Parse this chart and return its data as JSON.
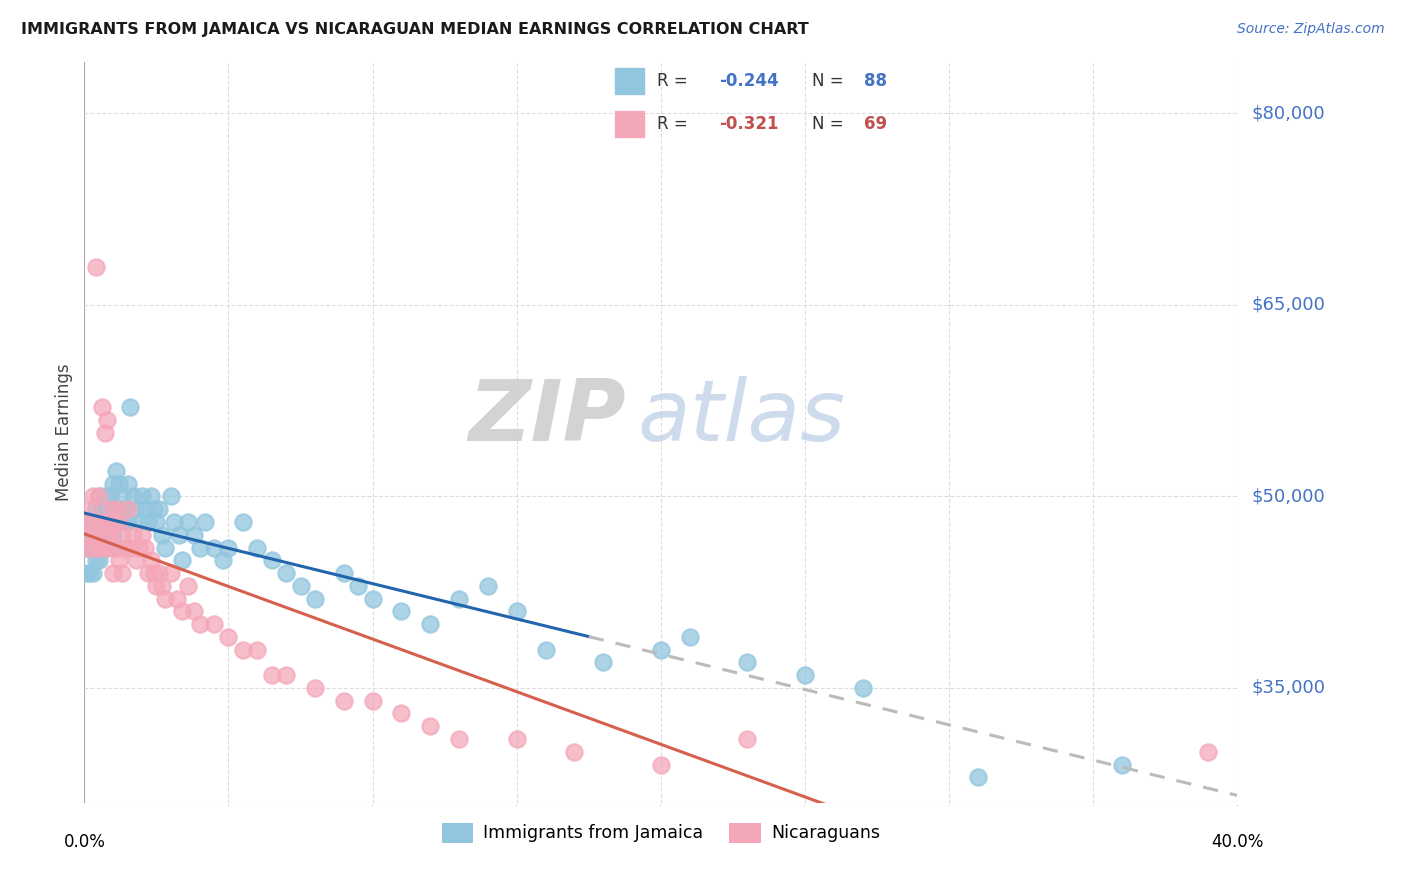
{
  "title": "IMMIGRANTS FROM JAMAICA VS NICARAGUAN MEDIAN EARNINGS CORRELATION CHART",
  "source": "Source: ZipAtlas.com",
  "ylabel": "Median Earnings",
  "xlim": [
    0.0,
    0.4
  ],
  "ylim": [
    26000,
    84000
  ],
  "right_yticks": [
    35000,
    50000,
    65000,
    80000
  ],
  "jamaica_color": "#92c5de",
  "nicaragua_color": "#f4a7b9",
  "trendline_jamaica_color": "#2166ac",
  "trendline_nicaragua_color": "#d6604d",
  "trendline_extended_color": "#bbbbbb",
  "watermark_zip": "ZIP",
  "watermark_atlas": "atlas",
  "jamaica_x": [
    0.001,
    0.001,
    0.002,
    0.002,
    0.002,
    0.003,
    0.003,
    0.003,
    0.003,
    0.004,
    0.004,
    0.004,
    0.004,
    0.005,
    0.005,
    0.005,
    0.005,
    0.006,
    0.006,
    0.006,
    0.006,
    0.007,
    0.007,
    0.007,
    0.008,
    0.008,
    0.008,
    0.009,
    0.009,
    0.01,
    0.01,
    0.01,
    0.011,
    0.011,
    0.012,
    0.012,
    0.013,
    0.013,
    0.014,
    0.015,
    0.015,
    0.016,
    0.017,
    0.018,
    0.019,
    0.02,
    0.021,
    0.022,
    0.023,
    0.024,
    0.025,
    0.026,
    0.027,
    0.028,
    0.03,
    0.031,
    0.033,
    0.034,
    0.036,
    0.038,
    0.04,
    0.042,
    0.045,
    0.048,
    0.05,
    0.055,
    0.06,
    0.065,
    0.07,
    0.075,
    0.08,
    0.09,
    0.095,
    0.1,
    0.11,
    0.12,
    0.13,
    0.14,
    0.15,
    0.16,
    0.18,
    0.2,
    0.21,
    0.23,
    0.25,
    0.27,
    0.31,
    0.36
  ],
  "jamaica_y": [
    46000,
    44000,
    47000,
    46000,
    44000,
    48000,
    47000,
    46000,
    44000,
    49000,
    48000,
    47000,
    45000,
    50000,
    48000,
    47000,
    45000,
    49000,
    48000,
    47000,
    46000,
    50000,
    48000,
    46000,
    49000,
    48000,
    46000,
    50000,
    48000,
    51000,
    49000,
    47000,
    52000,
    48000,
    51000,
    49000,
    50000,
    48000,
    49000,
    51000,
    48000,
    57000,
    50000,
    49000,
    48000,
    50000,
    49000,
    48000,
    50000,
    49000,
    48000,
    49000,
    47000,
    46000,
    50000,
    48000,
    47000,
    45000,
    48000,
    47000,
    46000,
    48000,
    46000,
    45000,
    46000,
    48000,
    46000,
    45000,
    44000,
    43000,
    42000,
    44000,
    43000,
    42000,
    41000,
    40000,
    42000,
    43000,
    41000,
    38000,
    37000,
    38000,
    39000,
    37000,
    36000,
    35000,
    28000,
    29000
  ],
  "nicaragua_x": [
    0.001,
    0.001,
    0.002,
    0.002,
    0.003,
    0.003,
    0.003,
    0.004,
    0.004,
    0.005,
    0.005,
    0.005,
    0.006,
    0.006,
    0.007,
    0.007,
    0.007,
    0.008,
    0.008,
    0.009,
    0.009,
    0.01,
    0.01,
    0.01,
    0.011,
    0.011,
    0.012,
    0.012,
    0.013,
    0.013,
    0.014,
    0.015,
    0.015,
    0.016,
    0.017,
    0.018,
    0.019,
    0.02,
    0.021,
    0.022,
    0.023,
    0.024,
    0.025,
    0.026,
    0.027,
    0.028,
    0.03,
    0.032,
    0.034,
    0.036,
    0.038,
    0.04,
    0.045,
    0.05,
    0.055,
    0.06,
    0.065,
    0.07,
    0.08,
    0.09,
    0.1,
    0.11,
    0.12,
    0.13,
    0.15,
    0.17,
    0.2,
    0.23,
    0.39
  ],
  "nicaragua_y": [
    48000,
    46000,
    49000,
    47000,
    50000,
    48000,
    46000,
    68000,
    47000,
    50000,
    48000,
    46000,
    57000,
    46000,
    55000,
    48000,
    46000,
    56000,
    47000,
    49000,
    47000,
    48000,
    46000,
    44000,
    49000,
    46000,
    48000,
    45000,
    47000,
    44000,
    46000,
    49000,
    46000,
    46000,
    47000,
    45000,
    46000,
    47000,
    46000,
    44000,
    45000,
    44000,
    43000,
    44000,
    43000,
    42000,
    44000,
    42000,
    41000,
    43000,
    41000,
    40000,
    40000,
    39000,
    38000,
    38000,
    36000,
    36000,
    35000,
    34000,
    34000,
    33000,
    32000,
    31000,
    31000,
    30000,
    29000,
    31000,
    30000
  ],
  "legend_r1_text": "R = ",
  "legend_r1_val": "-0.244",
  "legend_n1_text": "N = ",
  "legend_n1_val": "88",
  "legend_r2_text": "R = ",
  "legend_r2_val": "-0.321",
  "legend_n2_text": "N = ",
  "legend_n2_val": "69",
  "legend_color1": "#4472c4",
  "legend_color2": "#c0504d"
}
